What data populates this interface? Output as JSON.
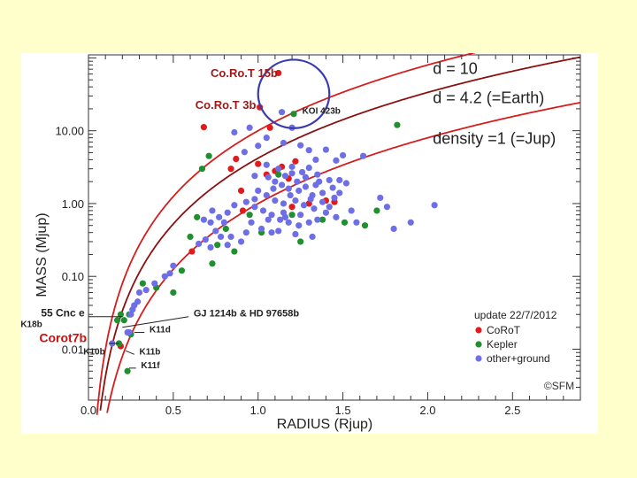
{
  "chart_data": {
    "type": "scatter",
    "xlabel": "RADIUS (Rjup)",
    "ylabel": "MASS (Mjup)",
    "xlim": [
      0,
      2.9
    ],
    "ylim": [
      0.002,
      110
    ],
    "y_scale": "log",
    "x_ticks": [
      "0.0",
      "0.5",
      "1.0",
      "1.5",
      "2.0",
      "2.5"
    ],
    "y_ticks": [
      "10.00",
      "1.00",
      "0.10",
      "0.01"
    ],
    "x_tick_values": [
      0,
      0.5,
      1.0,
      1.5,
      2.0,
      2.5
    ],
    "y_tick_values": [
      10,
      1,
      0.1,
      0.01
    ],
    "grid": false,
    "colors": {
      "corot": "#e11b1b",
      "kepler": "#1f8f2f",
      "other": "#6e6ee6",
      "curve": "#d61c1c",
      "curve_dark": "#8a1010",
      "highlight": "#3b3bb0"
    },
    "curves": [
      {
        "label": "d = 10",
        "density_rjup_mjup": 10,
        "color": "curve",
        "label_x": 2.03,
        "label_y": 60
      },
      {
        "label": "d = 4.2 (=Earth)",
        "density_rjup_mjup": 4.2,
        "color": "curve_dark",
        "label_x": 2.03,
        "label_y": 24
      },
      {
        "label": "density =1 (=Jup)",
        "density_rjup_mjup": 1,
        "color": "curve",
        "label_x": 2.03,
        "label_y": 6.6
      }
    ],
    "legend": {
      "title": "update 22/7/2012",
      "placement": "bottom-right",
      "entries": [
        {
          "name": "CoRoT",
          "color": "corot"
        },
        {
          "name": "Kepler",
          "color": "kepler"
        },
        {
          "name": "other+ground",
          "color": "other"
        }
      ]
    },
    "copyright": "©SFM",
    "annotations": [
      {
        "text": "Co.Ro.T 15b",
        "x": 0.72,
        "y": 55,
        "color": "#a01818",
        "size": 13
      },
      {
        "text": "Co.Ro.T 3b",
        "x": 0.63,
        "y": 20,
        "color": "#a01818",
        "size": 13
      },
      {
        "text": "KOI 423b",
        "x": 1.26,
        "y": 17,
        "color": "#222222",
        "size": 10
      },
      {
        "text": "55 Cnc e",
        "x": -0.28,
        "y": 0.028,
        "color": "#222222",
        "size": 12
      },
      {
        "text": "K18b",
        "x": -0.4,
        "y": 0.02,
        "color": "#222222",
        "size": 10
      },
      {
        "text": "Corot7b",
        "x": -0.29,
        "y": 0.0125,
        "color": "#cc1010",
        "size": 14
      },
      {
        "text": "K10b",
        "x": -0.03,
        "y": 0.0085,
        "color": "#222222",
        "size": 10
      },
      {
        "text": "GJ 1214b & HD 97658b",
        "x": 0.62,
        "y": 0.028,
        "color": "#222222",
        "size": 11
      },
      {
        "text": "K11d",
        "x": 0.36,
        "y": 0.017,
        "color": "#222222",
        "size": 10
      },
      {
        "text": "K11b",
        "x": 0.3,
        "y": 0.0085,
        "color": "#222222",
        "size": 10
      },
      {
        "text": "K11f",
        "x": 0.31,
        "y": 0.0055,
        "color": "#222222",
        "size": 10
      }
    ],
    "highlight_ellipse": {
      "cx": 1.21,
      "cy": 32,
      "rx": 0.21,
      "ry_decades": 0.47
    },
    "series": [
      {
        "name": "CoRoT",
        "color": "corot",
        "points": [
          [
            1.12,
            62
          ],
          [
            1.01,
            21
          ],
          [
            1.07,
            11
          ],
          [
            0.68,
            11.2
          ],
          [
            0.87,
            4.1
          ],
          [
            0.84,
            3.0
          ],
          [
            1.0,
            3.5
          ],
          [
            1.05,
            2.5
          ],
          [
            1.1,
            2.8
          ],
          [
            1.14,
            3.2
          ],
          [
            1.18,
            2.2
          ],
          [
            1.22,
            3.8
          ],
          [
            1.4,
            1.1
          ],
          [
            1.45,
            1.05
          ],
          [
            0.9,
            1.5
          ],
          [
            0.91,
            0.8
          ],
          [
            1.2,
            0.9
          ],
          [
            0.61,
            0.22
          ],
          [
            0.19,
            0.011
          ],
          [
            1.3,
            1.0
          ]
        ]
      },
      {
        "name": "Kepler",
        "color": "kepler",
        "points": [
          [
            1.21,
            17
          ],
          [
            1.82,
            12
          ],
          [
            0.71,
            4.5
          ],
          [
            0.67,
            3.0
          ],
          [
            1.12,
            2.5
          ],
          [
            0.64,
            0.65
          ],
          [
            0.81,
            0.45
          ],
          [
            0.76,
            0.27
          ],
          [
            0.73,
            0.15
          ],
          [
            0.55,
            0.12
          ],
          [
            0.5,
            0.06
          ],
          [
            0.4,
            0.07
          ],
          [
            0.32,
            0.08
          ],
          [
            0.24,
            0.03
          ],
          [
            0.21,
            0.025
          ],
          [
            0.18,
            0.012
          ],
          [
            0.25,
            0.016
          ],
          [
            0.23,
            0.005
          ],
          [
            0.17,
            0.025
          ],
          [
            0.19,
            0.03
          ],
          [
            1.38,
            0.6
          ],
          [
            1.51,
            0.55
          ],
          [
            1.63,
            0.5
          ],
          [
            1.7,
            0.8
          ],
          [
            0.86,
            0.22
          ],
          [
            1.02,
            0.4
          ],
          [
            1.2,
            0.7
          ],
          [
            1.25,
            0.3
          ],
          [
            0.95,
            0.7
          ],
          [
            0.6,
            0.35
          ]
        ]
      },
      {
        "name": "other+ground",
        "color": "other",
        "points": [
          [
            1.14,
            18
          ],
          [
            0.95,
            11
          ],
          [
            0.86,
            9.5
          ],
          [
            1.05,
            8.0
          ],
          [
            1.2,
            11
          ],
          [
            1.0,
            6.2
          ],
          [
            1.25,
            6.3
          ],
          [
            1.15,
            6.8
          ],
          [
            0.92,
            5.1
          ],
          [
            1.3,
            5.4
          ],
          [
            1.4,
            5.5
          ],
          [
            1.5,
            4.6
          ],
          [
            1.62,
            4.5
          ],
          [
            1.34,
            4.0
          ],
          [
            1.46,
            3.9
          ],
          [
            1.05,
            3.4
          ],
          [
            1.12,
            3.0
          ],
          [
            1.2,
            3.2
          ],
          [
            1.26,
            2.7
          ],
          [
            1.3,
            3.1
          ],
          [
            1.35,
            2.5
          ],
          [
            1.42,
            2.1
          ],
          [
            1.48,
            2.1
          ],
          [
            1.52,
            1.9
          ],
          [
            1.1,
            2.0
          ],
          [
            1.14,
            1.8
          ],
          [
            1.18,
            1.6
          ],
          [
            1.24,
            1.5
          ],
          [
            1.28,
            1.7
          ],
          [
            1.32,
            1.3
          ],
          [
            1.38,
            1.4
          ],
          [
            1.45,
            1.2
          ],
          [
            1.0,
            1.5
          ],
          [
            1.05,
            1.3
          ],
          [
            1.1,
            1.1
          ],
          [
            1.15,
            1.0
          ],
          [
            1.22,
            1.1
          ],
          [
            1.27,
            0.95
          ],
          [
            1.33,
            0.85
          ],
          [
            1.4,
            0.75
          ],
          [
            1.46,
            0.65
          ],
          [
            0.93,
            1.05
          ],
          [
            0.98,
            0.9
          ],
          [
            1.03,
            0.8
          ],
          [
            1.08,
            0.7
          ],
          [
            1.13,
            0.6
          ],
          [
            1.18,
            0.55
          ],
          [
            1.24,
            0.5
          ],
          [
            0.82,
            0.75
          ],
          [
            0.86,
            0.95
          ],
          [
            0.77,
            0.65
          ],
          [
            0.72,
            0.55
          ],
          [
            0.68,
            0.6
          ],
          [
            0.75,
            0.42
          ],
          [
            0.84,
            0.35
          ],
          [
            0.93,
            0.4
          ],
          [
            1.02,
            0.45
          ],
          [
            1.12,
            0.42
          ],
          [
            1.22,
            0.38
          ],
          [
            1.32,
            0.35
          ],
          [
            0.69,
            0.32
          ],
          [
            0.82,
            0.27
          ],
          [
            0.9,
            0.3
          ],
          [
            1.3,
            0.55
          ],
          [
            1.35,
            0.6
          ],
          [
            1.25,
            0.7
          ],
          [
            1.16,
            0.65
          ],
          [
            1.06,
            0.6
          ],
          [
            1.72,
            1.2
          ],
          [
            1.76,
            0.9
          ],
          [
            1.9,
            0.55
          ],
          [
            2.04,
            0.95
          ],
          [
            1.8,
            0.45
          ],
          [
            1.58,
            0.55
          ],
          [
            1.55,
            0.8
          ],
          [
            1.48,
            1.4
          ],
          [
            1.36,
            2.0
          ],
          [
            1.28,
            2.3
          ],
          [
            1.19,
            1.3
          ],
          [
            1.09,
            1.6
          ],
          [
            1.06,
            2.3
          ],
          [
            0.98,
            2.4
          ],
          [
            0.65,
            0.28
          ],
          [
            0.78,
            0.35
          ],
          [
            0.72,
            0.25
          ],
          [
            0.5,
            0.14
          ],
          [
            0.48,
            0.11
          ],
          [
            0.45,
            0.1
          ],
          [
            0.39,
            0.08
          ],
          [
            0.34,
            0.065
          ],
          [
            0.3,
            0.06
          ],
          [
            0.29,
            0.045
          ],
          [
            0.27,
            0.04
          ],
          [
            0.26,
            0.035
          ],
          [
            0.25,
            0.03
          ],
          [
            0.24,
            0.017
          ],
          [
            0.23,
            0.017
          ],
          [
            0.14,
            0.012
          ],
          [
            0.98,
            1.15
          ],
          [
            1.38,
            1.05
          ],
          [
            1.42,
            0.9
          ],
          [
            0.73,
            0.8
          ],
          [
            0.8,
            0.55
          ],
          [
            0.96,
            0.55
          ],
          [
            1.08,
            0.4
          ],
          [
            1.15,
            0.75
          ],
          [
            1.31,
            1.15
          ],
          [
            1.34,
            1.8
          ],
          [
            1.44,
            1.65
          ],
          [
            1.2,
            2.6
          ],
          [
            1.23,
            2.0
          ],
          [
            1.16,
            2.4
          ]
        ]
      }
    ]
  }
}
